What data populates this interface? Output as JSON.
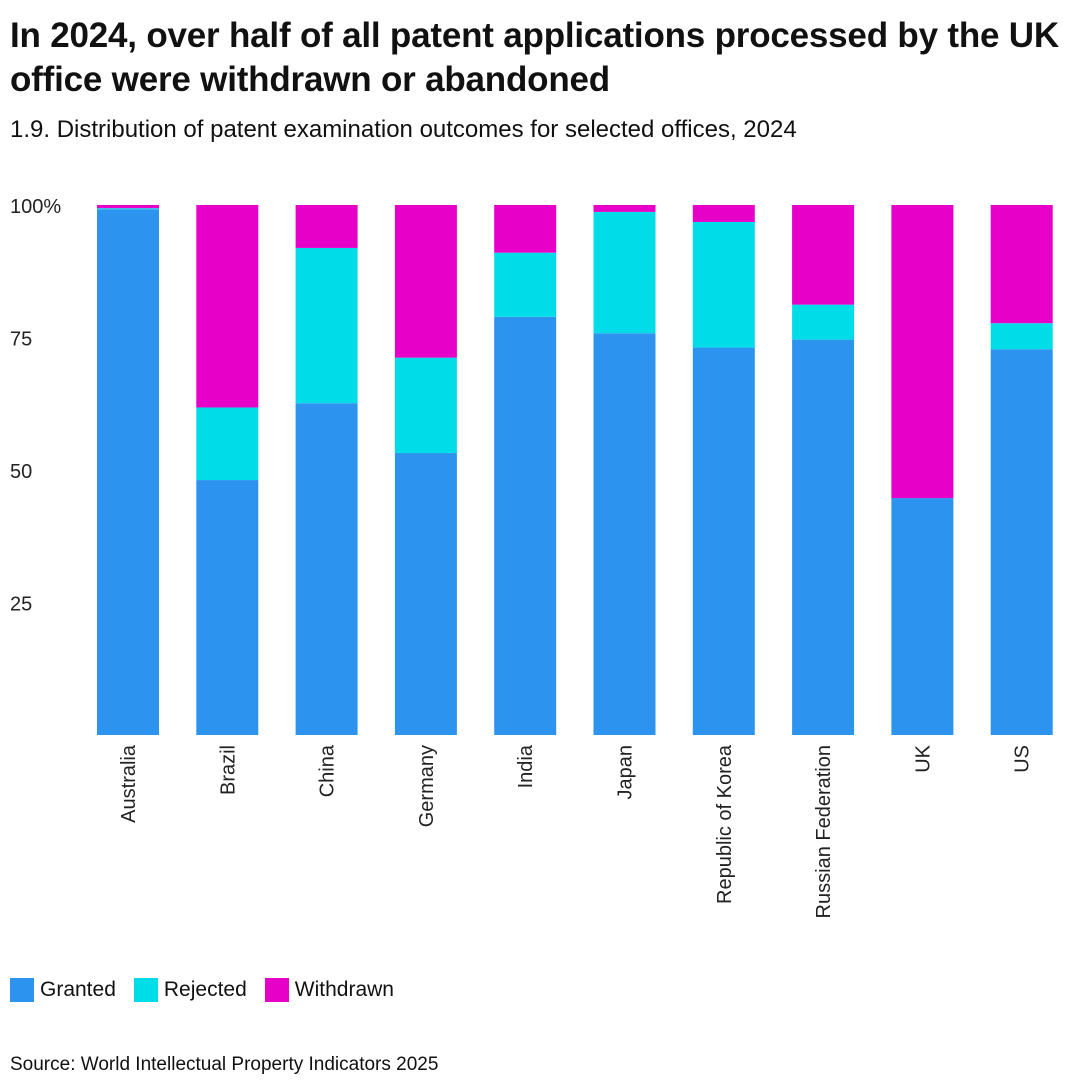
{
  "chart_data": {
    "type": "bar",
    "stacked": true,
    "title": "In 2024, over half of all patent applications processed by the UK office were withdrawn or abandoned",
    "subtitle": "1.9. Distribution of patent examination outcomes for selected offices, 2024",
    "categories": [
      "Australia",
      "Brazil",
      "China",
      "Germany",
      "India",
      "Japan",
      "Republic of Korea",
      "Russian Federation",
      "UK",
      "US"
    ],
    "series": [
      {
        "name": "Granted",
        "color": "#2c94ef",
        "values": [
          99.2,
          48.1,
          62.6,
          53.2,
          78.9,
          75.8,
          73.1,
          74.6,
          44.7,
          72.8
        ]
      },
      {
        "name": "Rejected",
        "color": "#00dde9",
        "values": [
          0.2,
          13.7,
          29.3,
          18.0,
          12.1,
          22.9,
          23.7,
          6.6,
          0.0,
          4.9
        ]
      },
      {
        "name": "Withdrawn",
        "color": "#e600c8",
        "values": [
          0.6,
          38.2,
          8.1,
          28.8,
          9.0,
          1.3,
          3.2,
          18.8,
          55.3,
          22.3
        ]
      }
    ],
    "yticks": [
      "25",
      "50",
      "75",
      "100%"
    ],
    "ytick_values": [
      25,
      50,
      75,
      100
    ],
    "ylim": [
      0,
      100
    ],
    "grid": false,
    "legend_position": "bottom-left",
    "source": "Source: World Intellectual Property Indicators 2025"
  }
}
